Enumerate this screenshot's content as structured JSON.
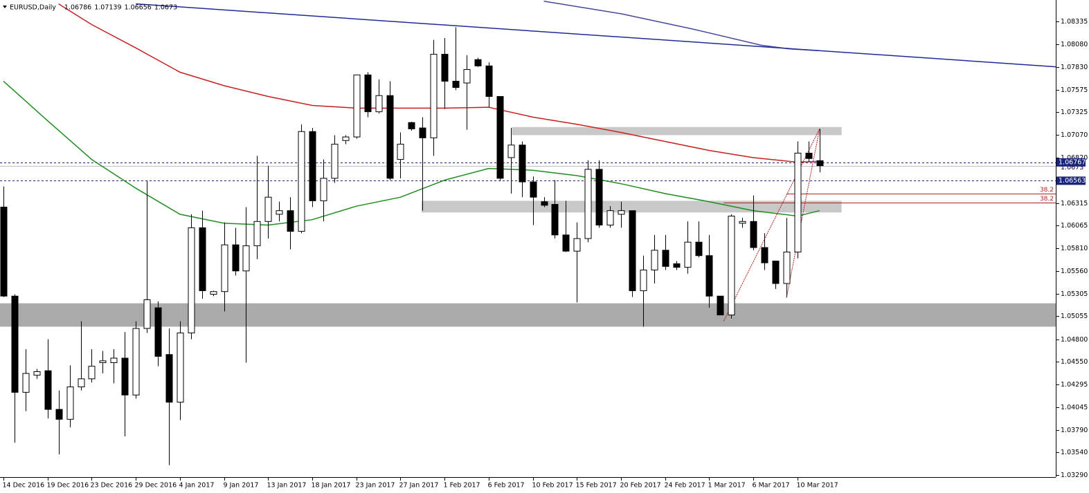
{
  "chart_data": {
    "type": "candlestick",
    "title": "EURUSD,Daily",
    "categories": [
      "14 Dec 2016",
      null,
      null,
      null,
      "19 Dec 2016",
      null,
      null,
      null,
      "23 Dec 2016",
      null,
      null,
      null,
      "29 Dec 2016",
      null,
      null,
      null,
      "4 Jan 2017",
      null,
      null,
      null,
      "9 Jan 2017",
      null,
      null,
      null,
      "13 Jan 2017",
      null,
      null,
      null,
      "18 Jan 2017",
      null,
      null,
      null,
      "23 Jan 2017",
      null,
      null,
      null,
      "27 Jan 2017",
      null,
      null,
      null,
      "1 Feb 2017",
      null,
      null,
      null,
      "6 Feb 2017",
      null,
      null,
      null,
      "10 Feb 2017",
      null,
      null,
      null,
      "15 Feb 2017",
      null,
      null,
      null,
      "20 Feb 2017",
      null,
      null,
      null,
      "24 Feb 2017",
      null,
      null,
      null,
      "1 Mar 2017",
      null,
      null,
      null,
      "6 Mar 2017",
      null,
      null,
      null,
      "10 Mar 2017",
      null,
      null
    ],
    "open": [
      1.0627,
      1.0528,
      1.0421,
      1.044,
      1.0445,
      1.0402,
      1.0391,
      1.0427,
      1.0436,
      1.0454,
      1.0454,
      1.0459,
      1.0418,
      1.0492,
      1.0515,
      1.0463,
      1.041,
      1.0487,
      1.0604,
      1.053,
      1.0533,
      1.0585,
      1.0556,
      1.0584,
      1.0611,
      1.0619,
      1.0623,
      1.06,
      1.0711,
      1.0634,
      1.0659,
      1.0701,
      1.0705,
      1.0774,
      1.0733,
      1.0751,
      1.068,
      1.0721,
      1.0715,
      1.0704,
      1.0797,
      1.0767,
      1.0765,
      1.0791,
      1.0784,
      1.075,
      1.0682,
      1.0696,
      1.0655,
      1.0633,
      1.063,
      1.0596,
      1.0578,
      1.0592,
      1.0669,
      1.0607,
      1.0619,
      1.0623,
      1.0534,
      1.0557,
      1.0579,
      1.0564,
      1.056,
      1.0588,
      1.0573,
      1.0528,
      1.0507,
      1.0609,
      1.0611,
      1.0582,
      1.0567,
      1.0542,
      1.0577,
      1.0687,
      1.06786
    ],
    "high": [
      1.065,
      1.053,
      1.0469,
      1.0447,
      1.048,
      1.0423,
      1.0451,
      1.05,
      1.0469,
      1.0467,
      1.0469,
      1.0488,
      1.05,
      1.0656,
      1.0522,
      1.0492,
      1.05,
      1.0619,
      1.0623,
      1.0534,
      1.061,
      1.0604,
      1.0627,
      1.0684,
      1.0673,
      1.0633,
      1.0638,
      1.0719,
      1.0715,
      1.068,
      1.0707,
      1.0707,
      1.0774,
      1.0777,
      1.0769,
      1.0767,
      1.071,
      1.0722,
      1.0727,
      1.0813,
      1.0815,
      1.0827,
      1.0796,
      1.0793,
      1.0788,
      1.075,
      1.0715,
      1.07,
      1.0661,
      1.0638,
      1.0657,
      1.0634,
      1.061,
      1.0679,
      1.0679,
      1.0628,
      1.0633,
      1.0623,
      1.0573,
      1.0596,
      1.0596,
      1.0567,
      1.0611,
      1.0611,
      1.0596,
      1.0528,
      1.0619,
      1.0615,
      1.064,
      1.0598,
      1.0567,
      1.0615,
      1.07,
      1.07,
      1.07139
    ],
    "low": [
      1.0527,
      1.0365,
      1.04,
      1.0436,
      1.0392,
      1.0352,
      1.0382,
      1.0423,
      1.0432,
      1.0442,
      1.0431,
      1.0372,
      1.0414,
      1.0487,
      1.045,
      1.034,
      1.039,
      1.048,
      1.0525,
      1.0528,
      1.0511,
      1.0551,
      1.0454,
      1.0569,
      1.0592,
      1.0611,
      1.058,
      1.0598,
      1.0627,
      1.0611,
      1.0654,
      1.0697,
      1.0703,
      1.0727,
      1.0731,
      1.0657,
      1.0659,
      1.0712,
      1.0623,
      1.0684,
      1.0736,
      1.0757,
      1.0713,
      1.0783,
      1.0738,
      1.0656,
      1.0642,
      1.0638,
      1.0607,
      1.0627,
      1.0592,
      1.0577,
      1.0521,
      1.0588,
      1.0604,
      1.0604,
      1.0604,
      1.0527,
      1.0494,
      1.0542,
      1.0557,
      1.0557,
      1.0553,
      1.0571,
      1.0515,
      1.0507,
      1.0503,
      1.0604,
      1.0579,
      1.0557,
      1.0536,
      1.0527,
      1.057,
      1.0677,
      1.06656
    ],
    "close": [
      1.0528,
      1.0421,
      1.0442,
      1.0444,
      1.0402,
      1.0391,
      1.0427,
      1.0436,
      1.045,
      1.0456,
      1.0459,
      1.0418,
      1.0492,
      1.0524,
      1.0461,
      1.041,
      1.0487,
      1.0604,
      1.0534,
      1.0533,
      1.0585,
      1.0556,
      1.0584,
      1.0611,
      1.0638,
      1.0623,
      1.06,
      1.0711,
      1.0634,
      1.0659,
      1.0697,
      1.0705,
      1.0774,
      1.0733,
      1.0751,
      1.0659,
      1.0697,
      1.0714,
      1.0704,
      1.0797,
      1.0767,
      1.076,
      1.078,
      1.0784,
      1.075,
      1.0659,
      1.0696,
      1.0655,
      1.0638,
      1.0629,
      1.0596,
      1.0578,
      1.0592,
      1.0669,
      1.0607,
      1.0623,
      1.0623,
      1.0534,
      1.0557,
      1.0579,
      1.0561,
      1.056,
      1.0588,
      1.0573,
      1.0528,
      1.0507,
      1.0617,
      1.0611,
      1.0582,
      1.0565,
      1.0542,
      1.0577,
      1.0687,
      1.0681,
      1.0673
    ],
    "up_color": "#ffffff",
    "down_color": "#000000",
    "wick_color": "#000000",
    "xlim": [
      -0.314,
      95.42
    ],
    "ylim": [
      1.03267,
      1.08573
    ],
    "yticks": [
      1.08335,
      {
        "value": 1.0808,
        "label": "1.08080"
      },
      {
        "value": 1.0783,
        "label": "1.07830"
      },
      1.07575,
      1.07325,
      {
        "value": 1.0707,
        "label": "1.07070"
      },
      {
        "value": 1.0682,
        "label": "1.06820"
      },
      1.06315,
      1.06065,
      {
        "value": 1.0581,
        "label": "1.05810"
      },
      {
        "value": 1.0556,
        "label": "1.05560"
      },
      1.05305,
      1.05055,
      {
        "value": 1.048,
        "label": "1.04800"
      },
      {
        "value": 1.0455,
        "label": "1.04550"
      },
      1.04295,
      1.04045,
      {
        "value": 1.0379,
        "label": "1.03790"
      },
      {
        "value": 1.0354,
        "label": "1.03540"
      },
      {
        "value": 1.0329,
        "label": "1.03290"
      }
    ],
    "overlays": [
      {
        "color": "#1e8c1e",
        "x": [
          0,
          4,
          8,
          12,
          16,
          20,
          24,
          28,
          32,
          36,
          40,
          44,
          48,
          52,
          56,
          60,
          64,
          68,
          72,
          74
        ],
        "values": [
          1.0767,
          1.0723,
          1.068,
          1.0648,
          1.0619,
          1.0609,
          1.0607,
          1.0613,
          1.0628,
          1.0638,
          1.0657,
          1.067,
          1.0668,
          1.0662,
          1.0653,
          1.0642,
          1.0633,
          1.0623,
          1.0617,
          1.0623
        ]
      },
      {
        "color": "#c81e1e",
        "x": [
          5,
          8,
          12,
          16,
          20,
          24,
          28,
          32,
          36,
          40,
          44,
          48,
          52,
          56,
          60,
          64,
          68,
          72,
          74
        ],
        "values": [
          1.0853,
          1.083,
          1.0804,
          1.0777,
          1.0762,
          1.075,
          1.074,
          1.0737,
          1.0737,
          1.0737,
          1.0738,
          1.0727,
          1.0719,
          1.071,
          1.07,
          1.069,
          1.0682,
          1.0677,
          1.0678
        ]
      },
      {
        "color": "#46469b",
        "x": [
          49,
          56,
          62.5,
          68.7,
          71.2,
          74
        ],
        "values": [
          1.0856,
          1.0842,
          1.0825,
          1.0807,
          1.0803,
          1.0801
        ]
      },
      {
        "color": "#1e2896",
        "x": [
          12,
          95.42
        ],
        "values": [
          1.0853,
          1.0783
        ]
      }
    ],
    "zones": [
      {
        "color": "#c8c8c8",
        "x": [
          46.1,
          76
        ],
        "y": [
          1.0707,
          1.0716
        ]
      },
      {
        "color": "#c8c8c8",
        "x": [
          37.9,
          76
        ],
        "y": [
          1.0621,
          1.0634
        ]
      },
      {
        "color": "#aaaaaa",
        "x": [
          -0.314,
          95.42
        ],
        "y": [
          1.0494,
          1.052
        ]
      }
    ],
    "fibs": [
      {
        "color": "#b22222",
        "x": [
          65.3,
          74
        ],
        "values": [
          1.05,
          1.0714
        ],
        "level": 38.2
      },
      {
        "color": "#b22222",
        "x": [
          71,
          74
        ],
        "values": [
          1.0526,
          1.0714
        ],
        "level": 38.2
      }
    ],
    "price_lines": [
      {
        "value": 1.0673,
        "color": "#c0c0c0",
        "dashed": false,
        "tag": false
      },
      {
        "value": 1.06767,
        "color": "#1a237e",
        "dashed": true,
        "tag": true
      },
      {
        "value": 1.06563,
        "color": "#1a237e",
        "dashed": true,
        "tag": true
      }
    ]
  }
}
